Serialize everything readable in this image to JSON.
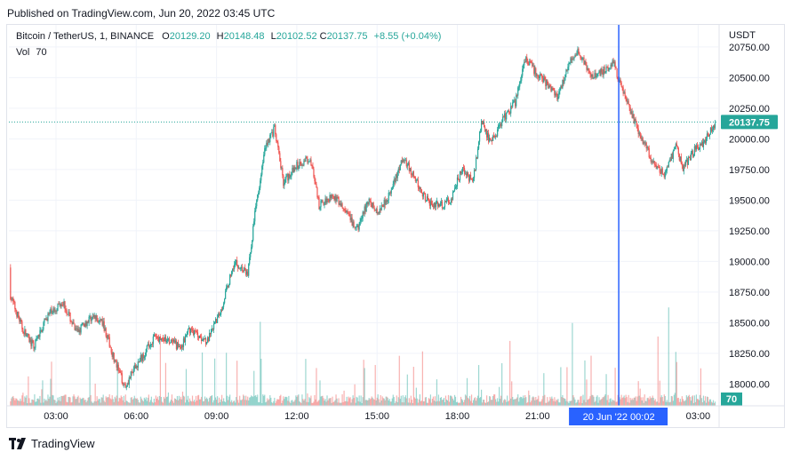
{
  "published": "Published on TradingView.com, Jun 20, 2022 03:45 UTC",
  "legend": {
    "symbol": "Bitcoin / TetherUS, 1, BINANCE",
    "open_label": "O",
    "open": "20129.20",
    "high_label": "H",
    "high": "20148.48",
    "low_label": "L",
    "low": "20102.52",
    "close_label": "C",
    "close": "20137.75",
    "change": "+8.55 (+0.04%)",
    "vol_label": "Vol",
    "vol": "70"
  },
  "currency": "USDT",
  "footer_brand": "TradingView",
  "colors": {
    "up": "#26a69a",
    "down": "#ef5350",
    "crosshair": "#2962ff",
    "last_price": "#26a69a"
  },
  "chart_data": {
    "type": "candlestick",
    "ylim": [
      17880,
      20930
    ],
    "y_ticks": [
      "20750.00",
      "20500.00",
      "20250.00",
      "20000.00",
      "19750.00",
      "19500.00",
      "19250.00",
      "19000.00",
      "18750.00",
      "18500.00",
      "18250.00",
      "18000.00"
    ],
    "x_ticks": [
      "03:00",
      "06:00",
      "09:00",
      "12:00",
      "15:00",
      "18:00",
      "21:00",
      "03:00"
    ],
    "last_price_label": "20137.75",
    "volume_label": "70",
    "crosshair_label": "20 Jun '22   00:02",
    "price_path": [
      {
        "t": "01:00",
        "p": 18950
      },
      {
        "t": "01:20",
        "p": 18700
      },
      {
        "t": "01:45",
        "p": 18450
      },
      {
        "t": "02:10",
        "p": 18300
      },
      {
        "t": "02:40",
        "p": 18550
      },
      {
        "t": "03:15",
        "p": 18680
      },
      {
        "t": "03:45",
        "p": 18420
      },
      {
        "t": "04:20",
        "p": 18550
      },
      {
        "t": "04:45",
        "p": 18500
      },
      {
        "t": "05:15",
        "p": 18150
      },
      {
        "t": "05:35",
        "p": 17980
      },
      {
        "t": "06:00",
        "p": 18150
      },
      {
        "t": "06:40",
        "p": 18380
      },
      {
        "t": "07:10",
        "p": 18350
      },
      {
        "t": "07:40",
        "p": 18300
      },
      {
        "t": "08:00",
        "p": 18450
      },
      {
        "t": "08:40",
        "p": 18350
      },
      {
        "t": "09:10",
        "p": 18600
      },
      {
        "t": "09:40",
        "p": 19000
      },
      {
        "t": "10:10",
        "p": 18900
      },
      {
        "t": "10:30",
        "p": 19500
      },
      {
        "t": "10:50",
        "p": 19950
      },
      {
        "t": "11:10",
        "p": 20080
      },
      {
        "t": "11:30",
        "p": 19650
      },
      {
        "t": "12:00",
        "p": 19780
      },
      {
        "t": "12:30",
        "p": 19850
      },
      {
        "t": "12:50",
        "p": 19450
      },
      {
        "t": "13:20",
        "p": 19550
      },
      {
        "t": "13:50",
        "p": 19400
      },
      {
        "t": "14:15",
        "p": 19250
      },
      {
        "t": "14:40",
        "p": 19500
      },
      {
        "t": "15:00",
        "p": 19400
      },
      {
        "t": "15:30",
        "p": 19560
      },
      {
        "t": "16:00",
        "p": 19850
      },
      {
        "t": "16:20",
        "p": 19700
      },
      {
        "t": "16:50",
        "p": 19500
      },
      {
        "t": "17:20",
        "p": 19450
      },
      {
        "t": "17:45",
        "p": 19500
      },
      {
        "t": "18:10",
        "p": 19750
      },
      {
        "t": "18:35",
        "p": 19650
      },
      {
        "t": "18:55",
        "p": 20150
      },
      {
        "t": "19:15",
        "p": 19950
      },
      {
        "t": "19:40",
        "p": 20150
      },
      {
        "t": "20:10",
        "p": 20300
      },
      {
        "t": "20:30",
        "p": 20650
      },
      {
        "t": "20:55",
        "p": 20550
      },
      {
        "t": "21:20",
        "p": 20450
      },
      {
        "t": "21:45",
        "p": 20350
      },
      {
        "t": "22:10",
        "p": 20600
      },
      {
        "t": "22:30",
        "p": 20720
      },
      {
        "t": "23:00",
        "p": 20500
      },
      {
        "t": "23:25",
        "p": 20550
      },
      {
        "t": "23:50",
        "p": 20620
      },
      {
        "t": "00:02",
        "p": 20480
      },
      {
        "t": "00:30",
        "p": 20200
      },
      {
        "t": "00:55",
        "p": 20000
      },
      {
        "t": "01:20",
        "p": 19800
      },
      {
        "t": "01:45",
        "p": 19700
      },
      {
        "t": "02:10",
        "p": 19950
      },
      {
        "t": "02:25",
        "p": 19760
      },
      {
        "t": "02:50",
        "p": 19900
      },
      {
        "t": "03:15",
        "p": 19980
      },
      {
        "t": "03:40",
        "p": 20140
      }
    ]
  }
}
